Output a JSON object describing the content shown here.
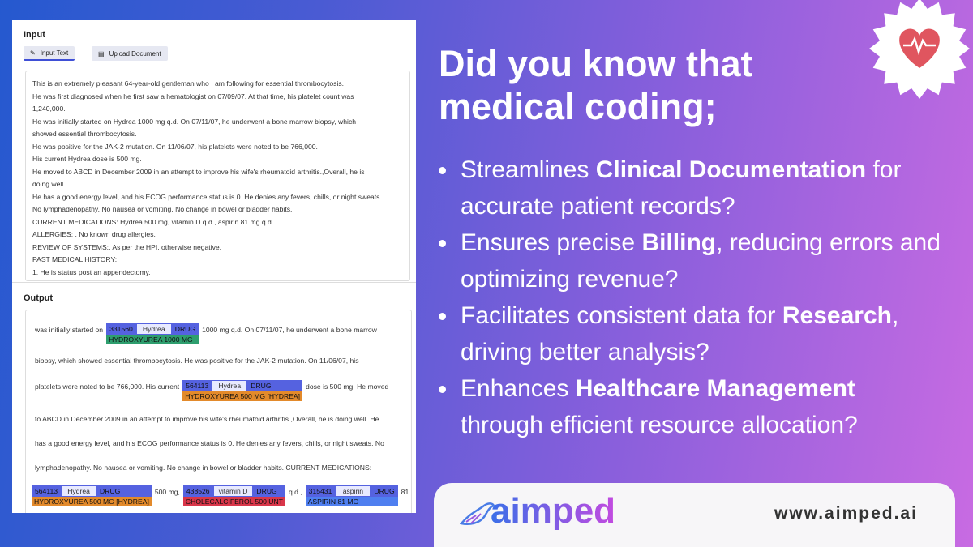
{
  "input": {
    "title": "Input",
    "tabs": [
      "Input Text",
      "Upload Document"
    ],
    "lines": [
      "This is an extremely pleasant 64-year-old gentleman who I am following for essential thrombocytosis.",
      "He was first diagnosed when he first saw a hematologist on 07/09/07. At that time, his platelet count was",
      "1,240,000.",
      "He was initially started on Hydrea 1000 mg q.d. On 07/11/07, he underwent a bone marrow biopsy, which",
      "showed essential thrombocytosis.",
      "He was positive for the JAK-2 mutation. On 11/06/07, his platelets were noted to be 766,000.",
      "His current Hydrea dose is 500 mg.",
      "He moved to ABCD in December 2009 in an attempt to improve his wife's rheumatoid arthritis.,Overall, he is",
      "doing well.",
      "He has a good energy level, and his ECOG performance status is 0. He denies any fevers, chills, or night sweats.",
      "No lymphadenopathy. No nausea or vomiting. No change in bowel or bladder habits.",
      "CURRENT MEDICATIONS: Hydrea 500 mg, vitamin D q.d , aspirin 81 mg q.d.",
      "ALLERGIES: , No known drug allergies.",
      "REVIEW OF SYSTEMS:, As per the HPI, otherwise negative.",
      "PAST MEDICAL HISTORY:",
      "1. He is status post an appendectomy."
    ]
  },
  "output": {
    "title": "Output",
    "rows": [
      [
        "was initially started on",
        {
          "code": "331560",
          "word": "Hydrea",
          "tag": "DRUG",
          "label": "HYDROXYUREA 1000 MG",
          "color": "#2e9e6e"
        },
        "1000 mg q.d. On 07/11/07, he underwent a bone marrow"
      ],
      [
        "biopsy, which showed essential thrombocytosis. He was positive for the JAK-2 mutation. On 11/06/07, his"
      ],
      [
        "platelets were noted to be 766,000. His current",
        {
          "code": "564113",
          "word": "Hydrea",
          "tag": "DRUG",
          "label": "HYDROXYUREA 500 MG [HYDREA]",
          "color": "#e38a2b"
        },
        "dose is 500 mg. He moved"
      ],
      [
        "to ABCD in December 2009 in an attempt to improve his wife's rheumatoid arthritis.,Overall, he is doing well. He"
      ],
      [
        "has a good energy level, and his ECOG performance status is 0. He denies any fevers, chills, or night sweats. No"
      ],
      [
        "lymphadenopathy. No nausea or vomiting. No change in bowel or bladder habits. CURRENT MEDICATIONS:"
      ],
      [
        {
          "code": "564113",
          "word": "Hydrea",
          "tag": "DRUG",
          "label": "HYDROXYUREA 500 MG [HYDREA]",
          "color": "#e38a2b"
        },
        "500 mg,",
        {
          "code": "438526",
          "word": "vitamin D",
          "tag": "DRUG",
          "label": "CHOLECALCIFEROL 500 UNT",
          "color": "#d9364a"
        },
        "q.d ,",
        {
          "code": "315431",
          "word": "aspirin",
          "tag": "DRUG",
          "label": "ASPIRIN 81 MG",
          "color": "#4f7ff0"
        },
        "81"
      ]
    ]
  },
  "headline": [
    "Did you know that",
    "medical coding;"
  ],
  "bullets": [
    {
      "before": "Streamlines ",
      "bold": "Clinical Documentation",
      "after": " for accurate patient records?"
    },
    {
      "before": "Ensures precise ",
      "bold": "Billing",
      "after": ", reducing errors and optimizing revenue?"
    },
    {
      "before": "Facilitates consistent data for ",
      "bold": "Research",
      "after": ", driving better analysis?"
    },
    {
      "before": "Enhances ",
      "bold": "Healthcare Management",
      "after": " through efficient resource allocation?"
    }
  ],
  "footer": {
    "logo": "aimped",
    "url": "www.aimped.ai"
  }
}
